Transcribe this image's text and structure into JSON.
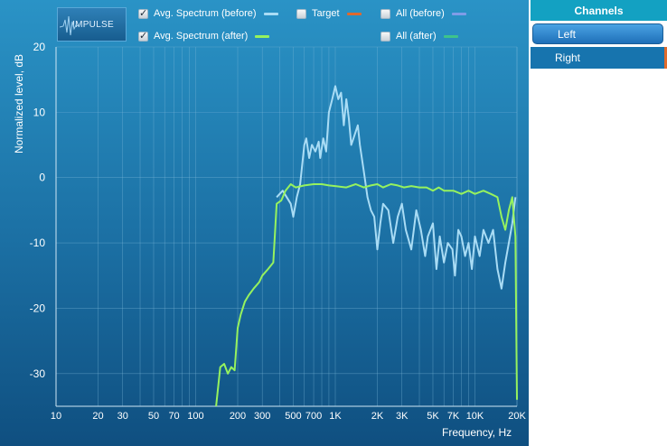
{
  "impulse_button": {
    "label": "IMPULSE"
  },
  "legend": [
    {
      "id": "avg-before",
      "label": "Avg. Spectrum (before)",
      "checked": true,
      "color": "#a9dcf5"
    },
    {
      "id": "target",
      "label": "Target",
      "checked": false,
      "color": "#e0692e"
    },
    {
      "id": "all-before",
      "label": "All (before)",
      "checked": false,
      "color": "#7f9ce8"
    },
    {
      "id": "avg-after",
      "label": "Avg. Spectrum (after)",
      "checked": true,
      "color": "#96f25e"
    },
    {
      "id": "all-after",
      "label": "All (after)",
      "checked": false,
      "color": "#3ec38b"
    }
  ],
  "side_panel": {
    "header": "Channels",
    "channels": [
      {
        "label": "Left",
        "selected": true
      },
      {
        "label": "Right",
        "selected": false
      }
    ]
  },
  "colors": {
    "panel_top": "#2a93c6",
    "panel_bottom": "#0f4f80",
    "grid": "#7cb8d9"
  },
  "chart_data": {
    "type": "line",
    "xlabel": "Frequency, Hz",
    "ylabel": "Normalized level, dB",
    "x_scale": "log",
    "xlim": [
      10,
      20000
    ],
    "ylim": [
      -35,
      20
    ],
    "grid": true,
    "x_ticks": [
      10,
      20,
      30,
      50,
      70,
      100,
      200,
      300,
      500,
      700,
      1000,
      2000,
      3000,
      5000,
      7000,
      10000,
      20000
    ],
    "x_tick_labels": [
      "10",
      "20",
      "30",
      "50",
      "70",
      "100",
      "200",
      "300",
      "500",
      "700",
      "1K",
      "2K",
      "3K",
      "5K",
      "7K",
      "10K",
      "20K"
    ],
    "y_ticks": [
      20,
      10,
      0,
      -10,
      -20,
      -30
    ],
    "series": [
      {
        "name": "Avg. Spectrum (before)",
        "color": "#a9dcf5",
        "points": [
          [
            380,
            -3
          ],
          [
            420,
            -2
          ],
          [
            480,
            -4
          ],
          [
            500,
            -6
          ],
          [
            530,
            -3
          ],
          [
            560,
            -1
          ],
          [
            600,
            5
          ],
          [
            620,
            6
          ],
          [
            650,
            3
          ],
          [
            680,
            5
          ],
          [
            720,
            4
          ],
          [
            760,
            5.5
          ],
          [
            780,
            3
          ],
          [
            820,
            6
          ],
          [
            860,
            4
          ],
          [
            900,
            10
          ],
          [
            950,
            12
          ],
          [
            1000,
            14
          ],
          [
            1050,
            12
          ],
          [
            1100,
            13
          ],
          [
            1150,
            8
          ],
          [
            1200,
            12
          ],
          [
            1250,
            9
          ],
          [
            1300,
            5
          ],
          [
            1350,
            6
          ],
          [
            1450,
            8
          ],
          [
            1500,
            5
          ],
          [
            1600,
            1
          ],
          [
            1700,
            -3
          ],
          [
            1800,
            -5
          ],
          [
            1900,
            -6
          ],
          [
            2000,
            -11
          ],
          [
            2100,
            -7
          ],
          [
            2200,
            -4
          ],
          [
            2400,
            -5
          ],
          [
            2600,
            -10
          ],
          [
            2800,
            -6
          ],
          [
            3000,
            -4
          ],
          [
            3200,
            -8
          ],
          [
            3500,
            -11
          ],
          [
            3800,
            -5
          ],
          [
            4100,
            -8
          ],
          [
            4400,
            -12
          ],
          [
            4600,
            -9
          ],
          [
            5000,
            -7
          ],
          [
            5300,
            -14
          ],
          [
            5600,
            -9
          ],
          [
            6000,
            -13
          ],
          [
            6400,
            -10
          ],
          [
            6900,
            -11
          ],
          [
            7200,
            -15
          ],
          [
            7600,
            -8
          ],
          [
            8000,
            -9
          ],
          [
            8500,
            -12
          ],
          [
            9000,
            -10
          ],
          [
            9500,
            -14
          ],
          [
            10000,
            -9
          ],
          [
            10800,
            -12
          ],
          [
            11500,
            -8
          ],
          [
            12500,
            -10
          ],
          [
            13500,
            -8
          ],
          [
            14500,
            -14
          ],
          [
            15500,
            -17
          ],
          [
            16500,
            -13
          ],
          [
            17500,
            -10
          ],
          [
            18500,
            -7
          ],
          [
            19500,
            -3
          ]
        ]
      },
      {
        "name": "Avg. Spectrum (after)",
        "color": "#96f25e",
        "points": [
          [
            140,
            -35
          ],
          [
            150,
            -29
          ],
          [
            160,
            -28.5
          ],
          [
            170,
            -30
          ],
          [
            180,
            -29
          ],
          [
            190,
            -29.5
          ],
          [
            200,
            -23
          ],
          [
            210,
            -21
          ],
          [
            225,
            -19
          ],
          [
            240,
            -18
          ],
          [
            260,
            -17
          ],
          [
            285,
            -16
          ],
          [
            300,
            -15
          ],
          [
            330,
            -14
          ],
          [
            360,
            -13
          ],
          [
            380,
            -4
          ],
          [
            410,
            -3.5
          ],
          [
            440,
            -2
          ],
          [
            480,
            -1
          ],
          [
            520,
            -1.5
          ],
          [
            600,
            -1.2
          ],
          [
            700,
            -1
          ],
          [
            800,
            -1
          ],
          [
            900,
            -1.2
          ],
          [
            1000,
            -1.3
          ],
          [
            1200,
            -1.5
          ],
          [
            1400,
            -1
          ],
          [
            1600,
            -1.5
          ],
          [
            1800,
            -1.2
          ],
          [
            2000,
            -1
          ],
          [
            2200,
            -1.5
          ],
          [
            2500,
            -1
          ],
          [
            2800,
            -1.2
          ],
          [
            3100,
            -1.5
          ],
          [
            3500,
            -1.3
          ],
          [
            4000,
            -1.5
          ],
          [
            4500,
            -1.5
          ],
          [
            5000,
            -2
          ],
          [
            5500,
            -1.5
          ],
          [
            6000,
            -2
          ],
          [
            7000,
            -2
          ],
          [
            8000,
            -2.5
          ],
          [
            9000,
            -2
          ],
          [
            10000,
            -2.5
          ],
          [
            11500,
            -2
          ],
          [
            13000,
            -2.5
          ],
          [
            14500,
            -3
          ],
          [
            15500,
            -6
          ],
          [
            16500,
            -8
          ],
          [
            17500,
            -5
          ],
          [
            18500,
            -3
          ],
          [
            19500,
            -9
          ],
          [
            20000,
            -34
          ]
        ]
      }
    ]
  }
}
